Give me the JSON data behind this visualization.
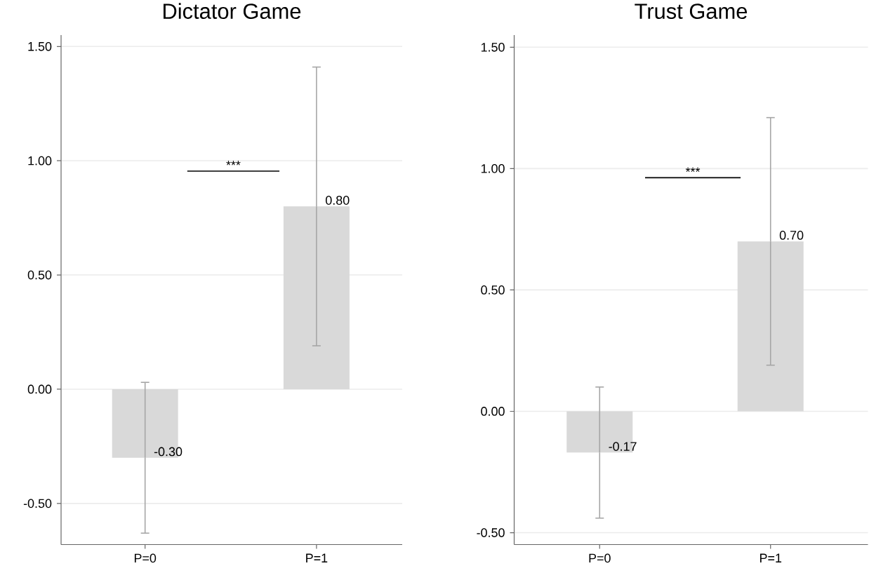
{
  "chart_data": [
    {
      "type": "bar",
      "title": "Dictator Game",
      "categories": [
        "P=0",
        "P=1"
      ],
      "values": [
        -0.3,
        0.8
      ],
      "errors": [
        0.33,
        0.61
      ],
      "value_labels": [
        "-0.30",
        "0.80"
      ],
      "color": "#d9d9d9",
      "ylim": [
        -0.68,
        1.55
      ],
      "yticks": [
        {
          "value": -0.5,
          "label": "-0.50"
        },
        {
          "value": 0,
          "label": "0.00"
        },
        {
          "value": 0.5,
          "label": "0.50"
        },
        {
          "value": 1,
          "label": "1.00"
        },
        {
          "value": 1.5,
          "label": "1.50"
        }
      ],
      "grid": "y",
      "annotations": [
        "***"
      ]
    },
    {
      "type": "bar",
      "title": "Trust Game",
      "categories": [
        "P=0",
        "P=1"
      ],
      "values": [
        -0.17,
        0.7
      ],
      "errors": [
        0.27,
        0.51
      ],
      "value_labels": [
        "-0.17",
        "0.70"
      ],
      "color": "#d9d9d9",
      "ylim": [
        -0.549,
        1.55
      ],
      "yticks": [
        {
          "value": -0.5,
          "label": "-0.50"
        },
        {
          "value": 0,
          "label": "0.00"
        },
        {
          "value": 0.5,
          "label": "0.50"
        },
        {
          "value": 1,
          "label": "1.00"
        },
        {
          "value": 1.5,
          "label": "1.50"
        }
      ],
      "grid": "y",
      "annotations": [
        "***"
      ]
    }
  ]
}
